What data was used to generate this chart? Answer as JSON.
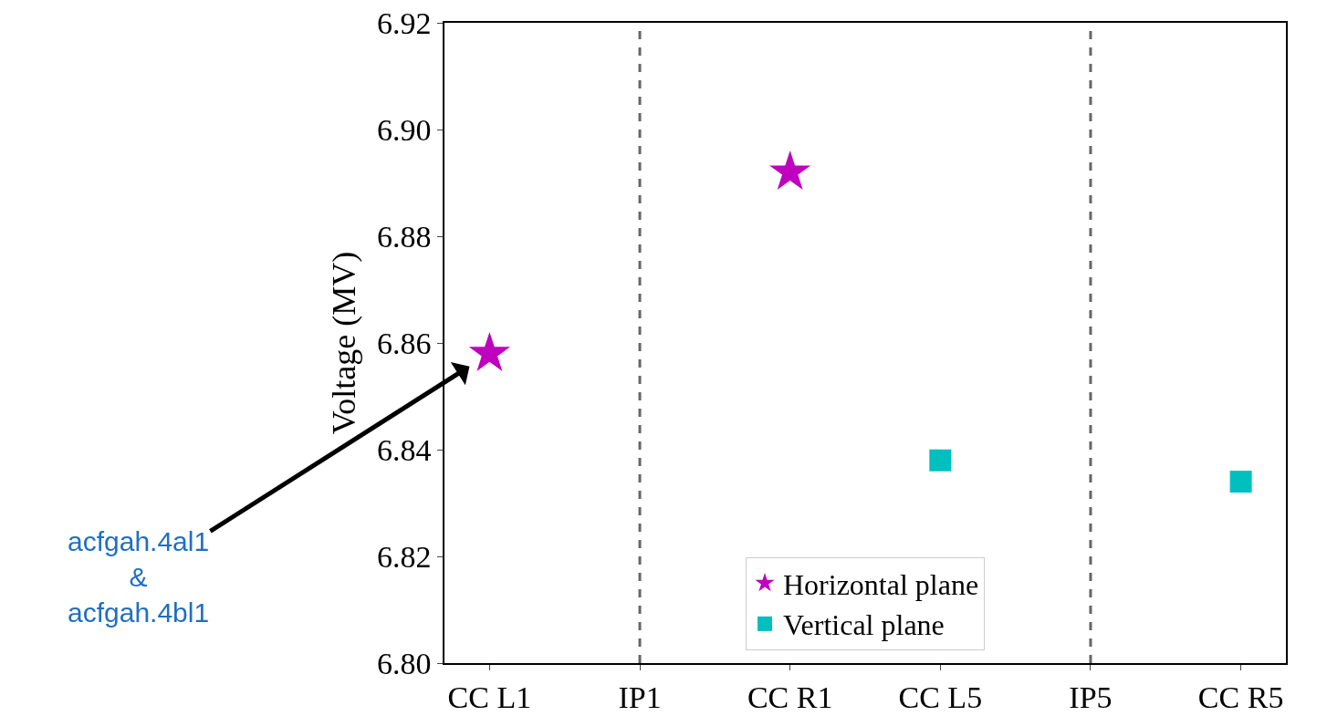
{
  "chart_data": {
    "type": "scatter",
    "ylabel": "Voltage (MV)",
    "categories": [
      "CC L1",
      "IP1",
      "CC R1",
      "CC L5",
      "IP5",
      "CC R5"
    ],
    "series": [
      {
        "name": "Horizontal plane",
        "color": "#bf00bf",
        "marker": "star",
        "x": [
          "CC L1",
          "CC R1"
        ],
        "values": [
          6.858,
          6.892
        ]
      },
      {
        "name": "Vertical plane",
        "color": "#00bfbf",
        "marker": "square",
        "x": [
          "CC L5",
          "CC R5"
        ],
        "values": [
          6.838,
          6.834
        ]
      }
    ],
    "ylim": [
      6.8,
      6.92
    ],
    "yticks": [
      {
        "value": 6.8,
        "label": "6.80"
      },
      {
        "value": 6.82,
        "label": "6.82"
      },
      {
        "value": 6.84,
        "label": "6.84"
      },
      {
        "value": 6.86,
        "label": "6.86"
      },
      {
        "value": 6.88,
        "label": "6.88"
      },
      {
        "value": 6.9,
        "label": "6.90"
      },
      {
        "value": 6.92,
        "label": "6.92"
      }
    ],
    "ref_lines": [
      {
        "axis": "x",
        "value": "IP1",
        "color": "#666666",
        "line_style": "dashed"
      },
      {
        "axis": "x",
        "value": "IP5",
        "color": "#666666",
        "line_style": "dashed"
      }
    ],
    "annotations": [
      {
        "text": "acfgah.4al1\n&\nacfgah.4bl1",
        "x": "CC L1",
        "y": 6.858
      }
    ],
    "grid": false,
    "legend": "bottom"
  }
}
